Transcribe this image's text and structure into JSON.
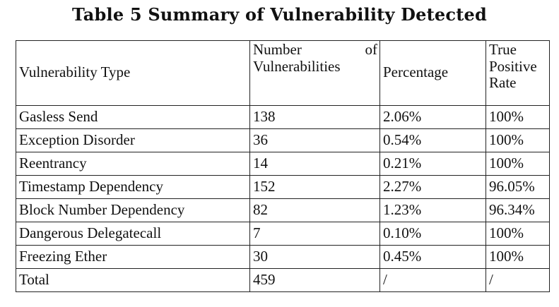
{
  "caption": "Table 5 Summary of Vulnerability Detected",
  "table": {
    "headers": {
      "type": "Vulnerability Type",
      "number_word1": "Number",
      "number_word2": "of",
      "number_word3": "Vulnerabilities",
      "percentage": "Percentage",
      "tpr_line1": "True",
      "tpr_line2": "Positive",
      "tpr_line3": "Rate"
    },
    "rows": [
      {
        "type": "Gasless Send",
        "number": "138",
        "percentage": "2.06%",
        "tpr": "100%"
      },
      {
        "type": "Exception Disorder",
        "number": "36",
        "percentage": "0.54%",
        "tpr": "100%"
      },
      {
        "type": "Reentrancy",
        "number": "14",
        "percentage": "0.21%",
        "tpr": "100%"
      },
      {
        "type": "Timestamp Dependency",
        "number": "152",
        "percentage": "2.27%",
        "tpr": "96.05%"
      },
      {
        "type": "Block Number Dependency",
        "number": "82",
        "percentage": "1.23%",
        "tpr": "96.34%"
      },
      {
        "type": "Dangerous Delegatecall",
        "number": "7",
        "percentage": "0.10%",
        "tpr": "100%"
      },
      {
        "type": "Freezing Ether",
        "number": "30",
        "percentage": "0.45%",
        "tpr": "100%"
      },
      {
        "type": "Total",
        "number": "459",
        "percentage": "/",
        "tpr": "/"
      }
    ]
  }
}
